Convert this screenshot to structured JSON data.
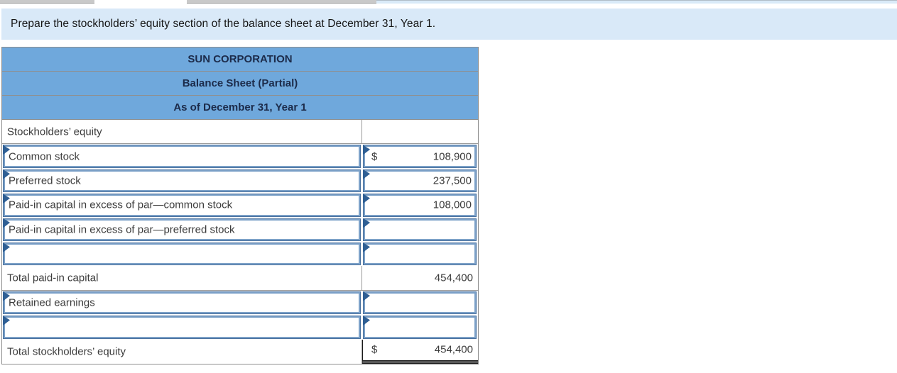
{
  "ui_colors": {
    "header_bg": "#6FA8DC",
    "header_text": "#1C2B4A",
    "instruction_bg": "#D9E9F8",
    "input_border": "#49719F",
    "input_border_inner": "#7CA1C8",
    "flag_marker": "#2F5F94",
    "grid_line": "#9A9A9A"
  },
  "instruction": {
    "text": "Prepare the stockholders’ equity section of the balance sheet at December 31, Year 1."
  },
  "statement": {
    "title": "SUN CORPORATION",
    "subtitle": "Balance Sheet (Partial)",
    "date_line": "As of December 31, Year 1",
    "rows": [
      {
        "label": "Stockholders’ equity",
        "currency": "",
        "amount": "",
        "row_type": "section-header",
        "editable": false
      },
      {
        "label": "Common stock",
        "currency": "$",
        "amount": "108,900",
        "row_type": "detail",
        "editable": true
      },
      {
        "label": "Preferred stock",
        "currency": "",
        "amount": "237,500",
        "row_type": "detail",
        "editable": true
      },
      {
        "label": "Paid-in capital in excess of par—common stock",
        "currency": "",
        "amount": "108,000",
        "row_type": "detail",
        "editable": true
      },
      {
        "label": "Paid-in capital in excess of par—preferred stock",
        "currency": "",
        "amount": "",
        "row_type": "detail",
        "editable": true
      },
      {
        "label": "",
        "currency": "",
        "amount": "",
        "row_type": "detail",
        "editable": true
      },
      {
        "label": "Total paid-in capital",
        "currency": "",
        "amount": "454,400",
        "row_type": "subtotal",
        "editable": false
      },
      {
        "label": "Retained earnings",
        "currency": "",
        "amount": "",
        "row_type": "detail",
        "editable": true
      },
      {
        "label": "",
        "currency": "",
        "amount": "",
        "row_type": "detail",
        "editable": true
      },
      {
        "label": "Total stockholders’ equity",
        "currency": "$",
        "amount": "454,400",
        "row_type": "total",
        "editable": false
      }
    ]
  }
}
